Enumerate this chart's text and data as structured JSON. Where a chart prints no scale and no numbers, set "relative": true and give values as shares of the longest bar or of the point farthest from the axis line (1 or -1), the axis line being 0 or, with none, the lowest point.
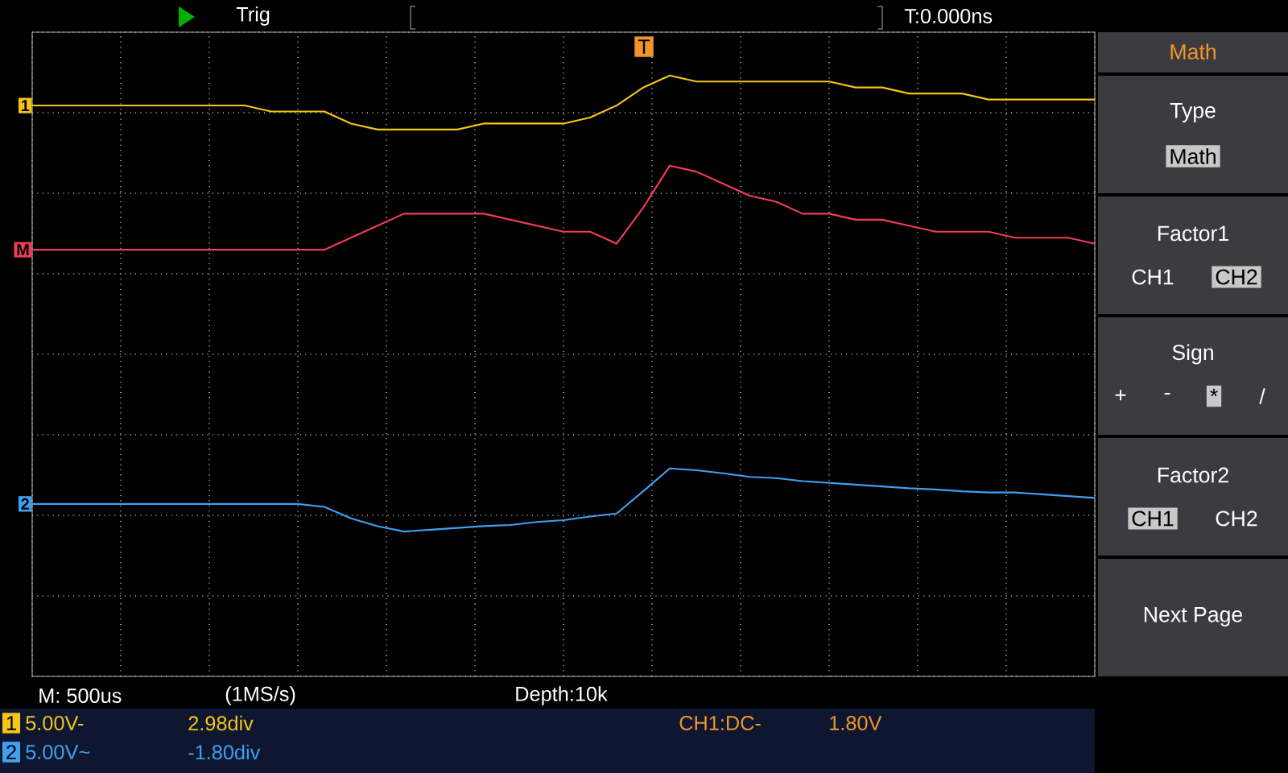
{
  "chart_data": {
    "type": "line",
    "relative": true,
    "grid": true,
    "legend": false,
    "marker": "none",
    "line_style": "solid",
    "categories": [
      null,
      null,
      null,
      null,
      null,
      null,
      null,
      null,
      null,
      null,
      null,
      null,
      null,
      null,
      null,
      null,
      null,
      null,
      null,
      null,
      null,
      null,
      null,
      null,
      null,
      null,
      null,
      null,
      null,
      null,
      null,
      null,
      null,
      null,
      null,
      null,
      null,
      null,
      null,
      null,
      null
    ],
    "series": [
      {
        "name": "1",
        "color": "#f5c518",
        "values": [
          0.95,
          0.95,
          0.95,
          0.95,
          0.95,
          0.95,
          0.95,
          0.95,
          0.95,
          0.94,
          0.94,
          0.94,
          0.92,
          0.91,
          0.91,
          0.91,
          0.91,
          0.92,
          0.92,
          0.92,
          0.92,
          0.93,
          0.95,
          0.98,
          1,
          0.99,
          0.99,
          0.99,
          0.99,
          0.99,
          0.99,
          0.98,
          0.98,
          0.97,
          0.97,
          0.97,
          0.96,
          0.96,
          0.96,
          0.96,
          0.96
        ]
      },
      {
        "name": "M",
        "color": "#f03c5a",
        "values": [
          0.71,
          0.71,
          0.71,
          0.71,
          0.71,
          0.71,
          0.71,
          0.71,
          0.71,
          0.71,
          0.71,
          0.71,
          0.73,
          0.75,
          0.77,
          0.77,
          0.77,
          0.77,
          0.76,
          0.75,
          0.74,
          0.74,
          0.72,
          0.78,
          0.85,
          0.84,
          0.82,
          0.8,
          0.79,
          0.77,
          0.77,
          0.76,
          0.76,
          0.75,
          0.74,
          0.74,
          0.74,
          0.73,
          0.73,
          0.73,
          0.72
        ]
      },
      {
        "name": "2",
        "color": "#3fa0f0",
        "values": [
          0.287,
          0.287,
          0.287,
          0.287,
          0.287,
          0.287,
          0.287,
          0.287,
          0.287,
          0.287,
          0.287,
          0.282,
          0.263,
          0.25,
          0.241,
          0.244,
          0.247,
          0.25,
          0.252,
          0.257,
          0.26,
          0.266,
          0.271,
          0.308,
          0.346,
          0.343,
          0.338,
          0.332,
          0.33,
          0.325,
          0.322,
          0.319,
          0.316,
          0.313,
          0.311,
          0.308,
          0.306,
          0.306,
          0.303,
          0.3,
          0.297
        ]
      }
    ],
    "annotations": [
      "Trig",
      "T:0.000ns",
      "M: 500us",
      "(1MS/s)",
      "Depth:10k",
      "5.00V-",
      "2.98div",
      "5.00V~",
      "-1.80div",
      "CH1:DC-",
      "1.80V",
      "1",
      "2",
      "T",
      "Math",
      "Type",
      "Math",
      "Factor1",
      "CH1",
      "CH2",
      "Sign",
      "+",
      "-",
      "*",
      "/",
      "Factor2",
      "CH1",
      "CH2",
      "Next Page"
    ]
  }
}
